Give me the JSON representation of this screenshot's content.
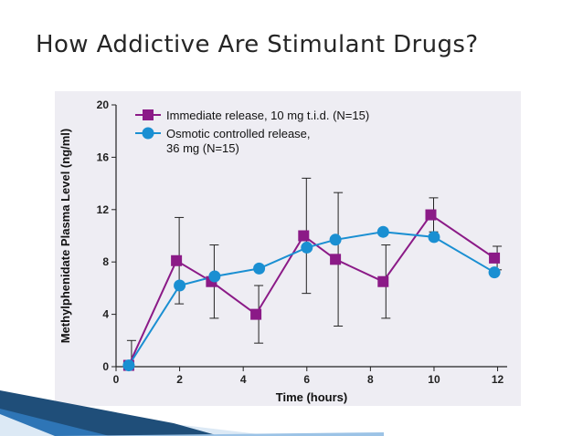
{
  "slide": {
    "title": "How Addictive Are Stimulant Drugs?"
  },
  "colors": {
    "immediate": "#8b1a87",
    "osmotic": "#1a8fd2",
    "panel": "#eeedf3",
    "text": "#262626",
    "deco_dark": "#1f4e79",
    "deco_light": "#9cc3e6"
  },
  "chart_data": {
    "type": "line",
    "title": "",
    "xlabel": "Time (hours)",
    "ylabel": "Methylphenidate Plasma Level (ng/ml)",
    "xlim": [
      0,
      12.3
    ],
    "ylim": [
      0,
      20
    ],
    "xticks": [
      0,
      2,
      4,
      6,
      8,
      10,
      12
    ],
    "yticks": [
      0,
      4,
      8,
      12,
      16,
      20
    ],
    "grid": false,
    "legend_position": "top-left",
    "error_bars_shown": true,
    "series": [
      {
        "name": "Immediate release, 10 mg t.i.d. (N=15)",
        "marker": "square",
        "color": "#8b1a87",
        "points": [
          {
            "x": 0.4,
            "y": 0.1,
            "err": 1.9
          },
          {
            "x": 1.9,
            "y": 8.1,
            "err": 3.3
          },
          {
            "x": 3.0,
            "y": 6.5,
            "err": 2.8
          },
          {
            "x": 4.4,
            "y": 4.0,
            "err": 2.2
          },
          {
            "x": 5.9,
            "y": 10.0,
            "err": 4.4
          },
          {
            "x": 6.9,
            "y": 8.2,
            "err": 5.1
          },
          {
            "x": 8.4,
            "y": 6.5,
            "err": 2.8
          },
          {
            "x": 9.9,
            "y": 11.6,
            "err": 1.3
          },
          {
            "x": 11.9,
            "y": 8.3,
            "err": 0.9
          }
        ]
      },
      {
        "name": "Osmotic controlled release, 36 mg (N=15)",
        "name_lines": [
          "Osmotic controlled release,",
          "36 mg (N=15)"
        ],
        "marker": "circle",
        "color": "#1a8fd2",
        "points": [
          {
            "x": 0.4,
            "y": 0.1
          },
          {
            "x": 2.0,
            "y": 6.2
          },
          {
            "x": 3.1,
            "y": 6.9
          },
          {
            "x": 4.5,
            "y": 7.5
          },
          {
            "x": 6.0,
            "y": 9.1
          },
          {
            "x": 6.9,
            "y": 9.7
          },
          {
            "x": 8.4,
            "y": 10.3
          },
          {
            "x": 10.0,
            "y": 9.9
          },
          {
            "x": 11.9,
            "y": 7.2
          }
        ]
      }
    ]
  }
}
